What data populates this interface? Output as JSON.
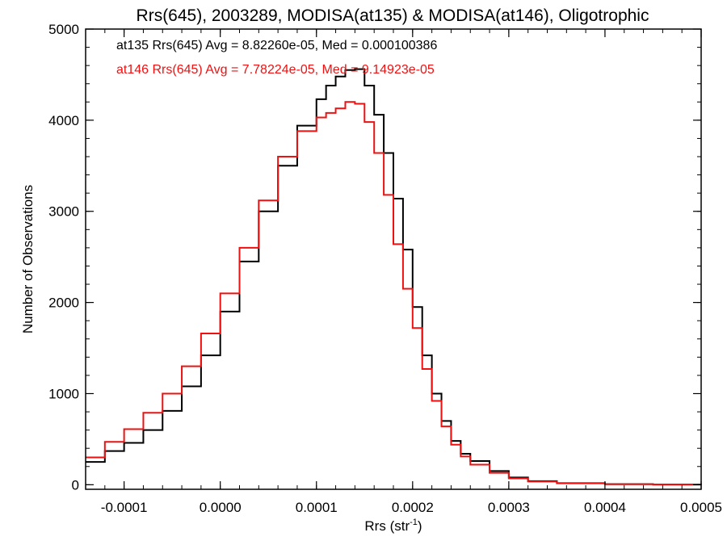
{
  "chart_data": {
    "type": "line",
    "title": "Rrs(645), 2003289, MODISA(at135) & MODISA(at146), Oligotrophic",
    "xlabel": "Rrs (str",
    "xlabel_sup": "-1",
    "xlabel_close": ")",
    "ylabel": "Number of Observations",
    "xlim": [
      -0.00014,
      0.0005
    ],
    "ylim": [
      -50,
      5000
    ],
    "x_ticks": [
      -0.0001,
      0.0,
      0.0001,
      0.0002,
      0.0003,
      0.0004,
      0.0005
    ],
    "x_tick_labels": [
      "-0.0001",
      "0.0000",
      "0.0001",
      "0.0002",
      "0.0003",
      "0.0004",
      "0.0005"
    ],
    "y_ticks": [
      0,
      1000,
      2000,
      3000,
      4000,
      5000
    ],
    "y_tick_labels": [
      "0",
      "1000",
      "2000",
      "3000",
      "4000",
      "5000"
    ],
    "grid": false,
    "legend_placement": "top-left",
    "series": [
      {
        "name": "at135",
        "label": "at135 Rrs(645) Avg = 8.82260e-05, Med = 0.000100386",
        "color": "#000000",
        "x": [
          -0.00014,
          -0.00012,
          -0.0001,
          -8e-05,
          -6e-05,
          -4e-05,
          -2e-05,
          0.0,
          2e-05,
          4e-05,
          6e-05,
          8e-05,
          0.0001,
          0.00011,
          0.00012,
          0.00013,
          0.00014,
          0.00015,
          0.00016,
          0.00017,
          0.00018,
          0.00019,
          0.0002,
          0.00021,
          0.00022,
          0.00023,
          0.00024,
          0.00025,
          0.00026,
          0.00028,
          0.0003,
          0.00032,
          0.00035,
          0.0004,
          0.00045,
          0.0005
        ],
        "y": [
          250,
          370,
          460,
          600,
          810,
          1080,
          1420,
          1900,
          2450,
          3000,
          3500,
          3940,
          4230,
          4380,
          4480,
          4550,
          4560,
          4380,
          4060,
          3640,
          3140,
          2580,
          1950,
          1420,
          1000,
          700,
          480,
          340,
          260,
          150,
          80,
          40,
          18,
          6,
          2,
          0
        ]
      },
      {
        "name": "at146",
        "label": "at146 Rrs(645) Avg = 7.78224e-05, Med = 9.14923e-05",
        "color": "#ee1111",
        "x": [
          -0.00014,
          -0.00012,
          -0.0001,
          -8e-05,
          -6e-05,
          -4e-05,
          -2e-05,
          0.0,
          2e-05,
          4e-05,
          6e-05,
          8e-05,
          0.0001,
          0.00011,
          0.00012,
          0.00013,
          0.00014,
          0.00015,
          0.00016,
          0.00017,
          0.00018,
          0.00019,
          0.0002,
          0.00021,
          0.00022,
          0.00023,
          0.00024,
          0.00025,
          0.00026,
          0.00028,
          0.0003,
          0.00032,
          0.00035,
          0.0004,
          0.00045,
          0.0005
        ],
        "y": [
          300,
          470,
          610,
          790,
          1000,
          1300,
          1660,
          2100,
          2600,
          3120,
          3600,
          3880,
          4030,
          4080,
          4130,
          4200,
          4180,
          3980,
          3640,
          3180,
          2640,
          2150,
          1720,
          1270,
          920,
          640,
          440,
          310,
          220,
          130,
          70,
          35,
          15,
          5,
          2,
          0
        ]
      }
    ]
  }
}
